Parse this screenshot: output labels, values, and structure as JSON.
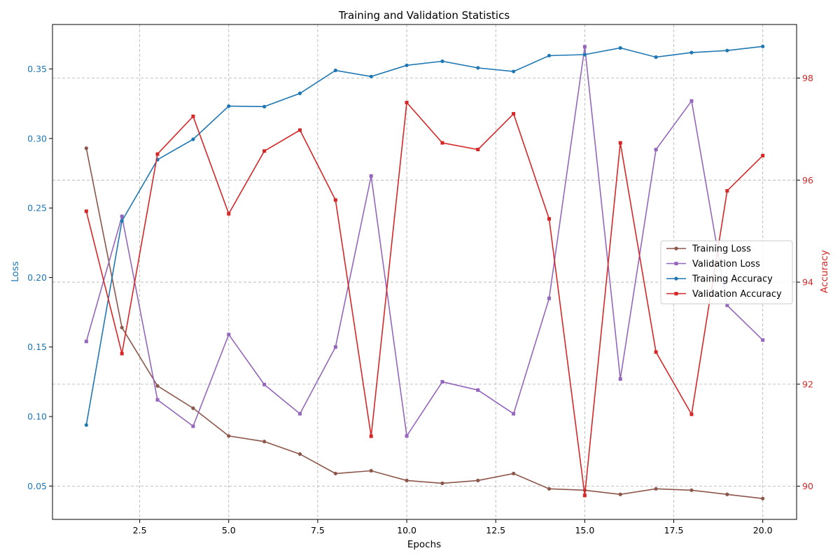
{
  "chart_data": {
    "type": "line",
    "title": "Training and Validation Statistics",
    "xlabel": "Epochs",
    "ylabel_left": "Loss",
    "ylabel_right": "Accuracy",
    "xlim": [
      0.05,
      20.95
    ],
    "ylim_left": [
      0.026,
      0.382
    ],
    "ylim_right": [
      89.35,
      99.05
    ],
    "x_ticks": [
      2.5,
      5.0,
      7.5,
      10.0,
      12.5,
      15.0,
      17.5,
      20.0
    ],
    "x_tick_labels": [
      "2.5",
      "5.0",
      "7.5",
      "10.0",
      "12.5",
      "15.0",
      "17.5",
      "20.0"
    ],
    "y_left_ticks": [
      0.05,
      0.1,
      0.15,
      0.2,
      0.25,
      0.3,
      0.35
    ],
    "y_left_tick_labels": [
      "0.05",
      "0.10",
      "0.15",
      "0.20",
      "0.25",
      "0.30",
      "0.35"
    ],
    "y_right_ticks": [
      90,
      92,
      94,
      96,
      98
    ],
    "y_right_tick_labels": [
      "90",
      "92",
      "94",
      "96",
      "98"
    ],
    "grid": true,
    "legend_position": "center-right",
    "left_axis_color": "#1f77b4",
    "right_axis_color": "#d62728",
    "x": [
      1,
      2,
      3,
      4,
      5,
      6,
      7,
      8,
      9,
      10,
      11,
      12,
      13,
      14,
      15,
      16,
      17,
      18,
      19,
      20
    ],
    "series": [
      {
        "name": "Training Loss",
        "axis": "left",
        "color": "#8c564b",
        "marker": "circle",
        "values": [
          0.293,
          0.164,
          0.122,
          0.106,
          0.086,
          0.082,
          0.073,
          0.059,
          0.061,
          0.054,
          0.052,
          0.054,
          0.059,
          0.048,
          0.047,
          0.044,
          0.048,
          0.047,
          0.044,
          0.041
        ]
      },
      {
        "name": "Validation Loss",
        "axis": "left",
        "color": "#9467bd",
        "marker": "square",
        "values": [
          0.154,
          0.244,
          0.112,
          0.093,
          0.159,
          0.123,
          0.102,
          0.15,
          0.273,
          0.086,
          0.125,
          0.119,
          0.102,
          0.185,
          0.366,
          0.127,
          0.292,
          0.327,
          0.18,
          0.155
        ]
      },
      {
        "name": "Training Accuracy",
        "axis": "right",
        "color": "#1f77b4",
        "marker": "circle",
        "values": [
          91.2,
          95.2,
          96.4,
          96.8,
          97.45,
          97.44,
          97.7,
          98.15,
          98.03,
          98.25,
          98.33,
          98.2,
          98.13,
          98.44,
          98.46,
          98.59,
          98.41,
          98.5,
          98.54,
          98.62
        ]
      },
      {
        "name": "Validation Accuracy",
        "axis": "right",
        "color": "#d62728",
        "marker": "square",
        "values": [
          95.39,
          92.6,
          96.51,
          97.25,
          95.34,
          96.57,
          96.98,
          95.61,
          90.98,
          97.52,
          96.73,
          96.6,
          97.3,
          95.24,
          89.82,
          96.73,
          92.63,
          91.41,
          95.79,
          96.48
        ]
      }
    ]
  }
}
